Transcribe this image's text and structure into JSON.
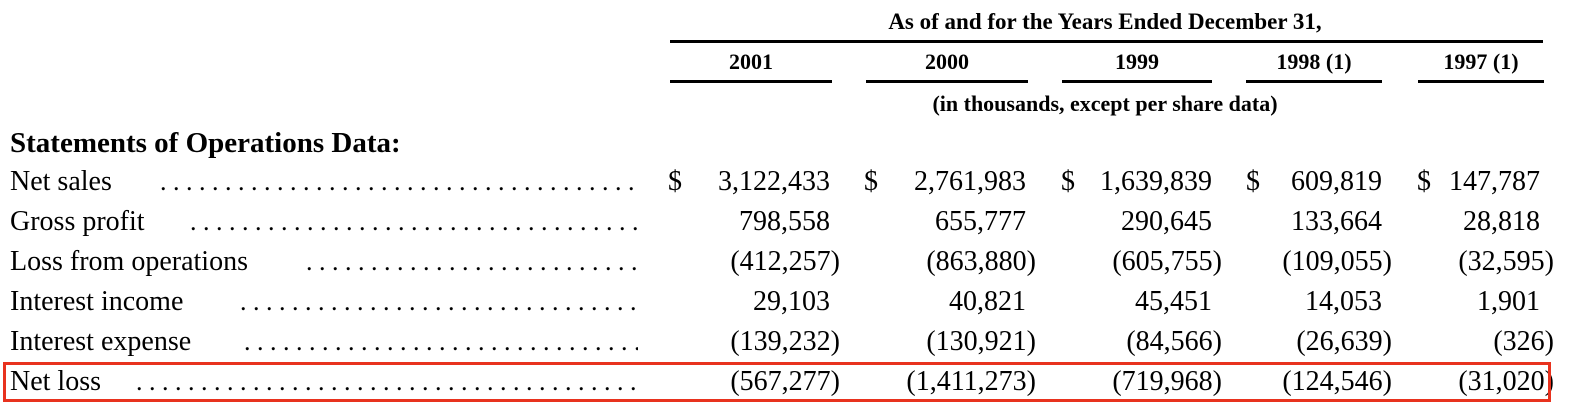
{
  "header": {
    "title": "As of and for the Years Ended December 31,",
    "years": [
      "2001",
      "2000",
      "1999",
      "1998 (1)",
      "1997 (1)"
    ],
    "units_note": "(in thousands, except per share data)"
  },
  "section_title": "Statements of Operations Data:",
  "currency_symbol": "$",
  "rows": [
    {
      "label": "Net sales",
      "values": [
        "3,122,433",
        "2,761,983",
        "1,639,839",
        "609,819",
        "147,787"
      ]
    },
    {
      "label": "Gross profit",
      "values": [
        "798,558",
        "655,777",
        "290,645",
        "133,664",
        "28,818"
      ]
    },
    {
      "label": "Loss from operations",
      "values": [
        "(412,257)",
        "(863,880)",
        "(605,755)",
        "(109,055)",
        "(32,595)"
      ]
    },
    {
      "label": "Interest income",
      "values": [
        "29,103",
        "40,821",
        "45,451",
        "14,053",
        "1,901"
      ]
    },
    {
      "label": "Interest expense",
      "values": [
        "(139,232)",
        "(130,921)",
        "(84,566)",
        "(26,639)",
        "(326)"
      ]
    },
    {
      "label": "Net loss",
      "values": [
        "(567,277)",
        "(1,411,273)",
        "(719,968)",
        "(124,546)",
        "(31,020)"
      ]
    }
  ],
  "highlight": {
    "row": "Net loss",
    "color": "#e8321e"
  }
}
